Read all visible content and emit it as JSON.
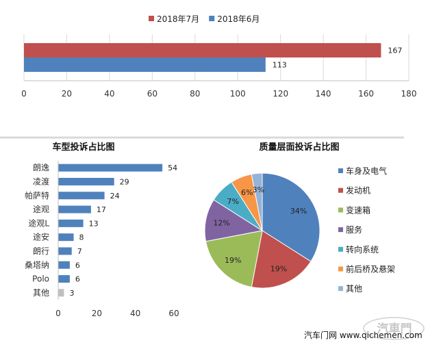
{
  "chart_data": [
    {
      "type": "bar",
      "orientation": "horizontal",
      "series": [
        {
          "name": "2018年7月",
          "values": [
            167
          ],
          "color": "#c0504d"
        },
        {
          "name": "2018年6月",
          "values": [
            113
          ],
          "color": "#4f81bd"
        }
      ],
      "xlim": [
        0,
        180
      ],
      "xticks": [
        0,
        20,
        40,
        60,
        80,
        100,
        120,
        140,
        160,
        180
      ],
      "legend": "top",
      "grid": "vertical"
    },
    {
      "type": "bar",
      "orientation": "horizontal",
      "title": "车型投诉占比图",
      "categories": [
        "朗逸",
        "凌渡",
        "帕萨特",
        "途观",
        "途观L",
        "途安",
        "朗行",
        "桑塔纳",
        "Polo",
        "其他"
      ],
      "values": [
        54,
        29,
        24,
        17,
        13,
        8,
        7,
        6,
        6,
        3
      ],
      "colors": [
        "#4f81bd",
        "#4f81bd",
        "#4f81bd",
        "#4f81bd",
        "#4f81bd",
        "#4f81bd",
        "#4f81bd",
        "#4f81bd",
        "#4f81bd",
        "#bfbfbf"
      ],
      "xlim": [
        0,
        60
      ],
      "xticks": [
        0,
        20,
        40,
        60
      ]
    },
    {
      "type": "pie",
      "title": "质量层面投诉占比图",
      "categories": [
        "车身及电气",
        "发动机",
        "变速箱",
        "服务",
        "转向系统",
        "前后桥及悬架",
        "其他"
      ],
      "values": [
        34,
        19,
        19,
        12,
        7,
        6,
        3
      ],
      "labels": [
        "34%",
        "19%",
        "19%",
        "12%",
        "7%",
        "6%",
        "3%"
      ],
      "colors": [
        "#4f81bd",
        "#c0504d",
        "#9bbb59",
        "#8064a2",
        "#4bacc6",
        "#f79646",
        "#95b3d7"
      ],
      "legend": "right"
    }
  ],
  "watermark": {
    "text": "汽车门网  www.qichemen.com",
    "logo_text": "汽車門"
  }
}
